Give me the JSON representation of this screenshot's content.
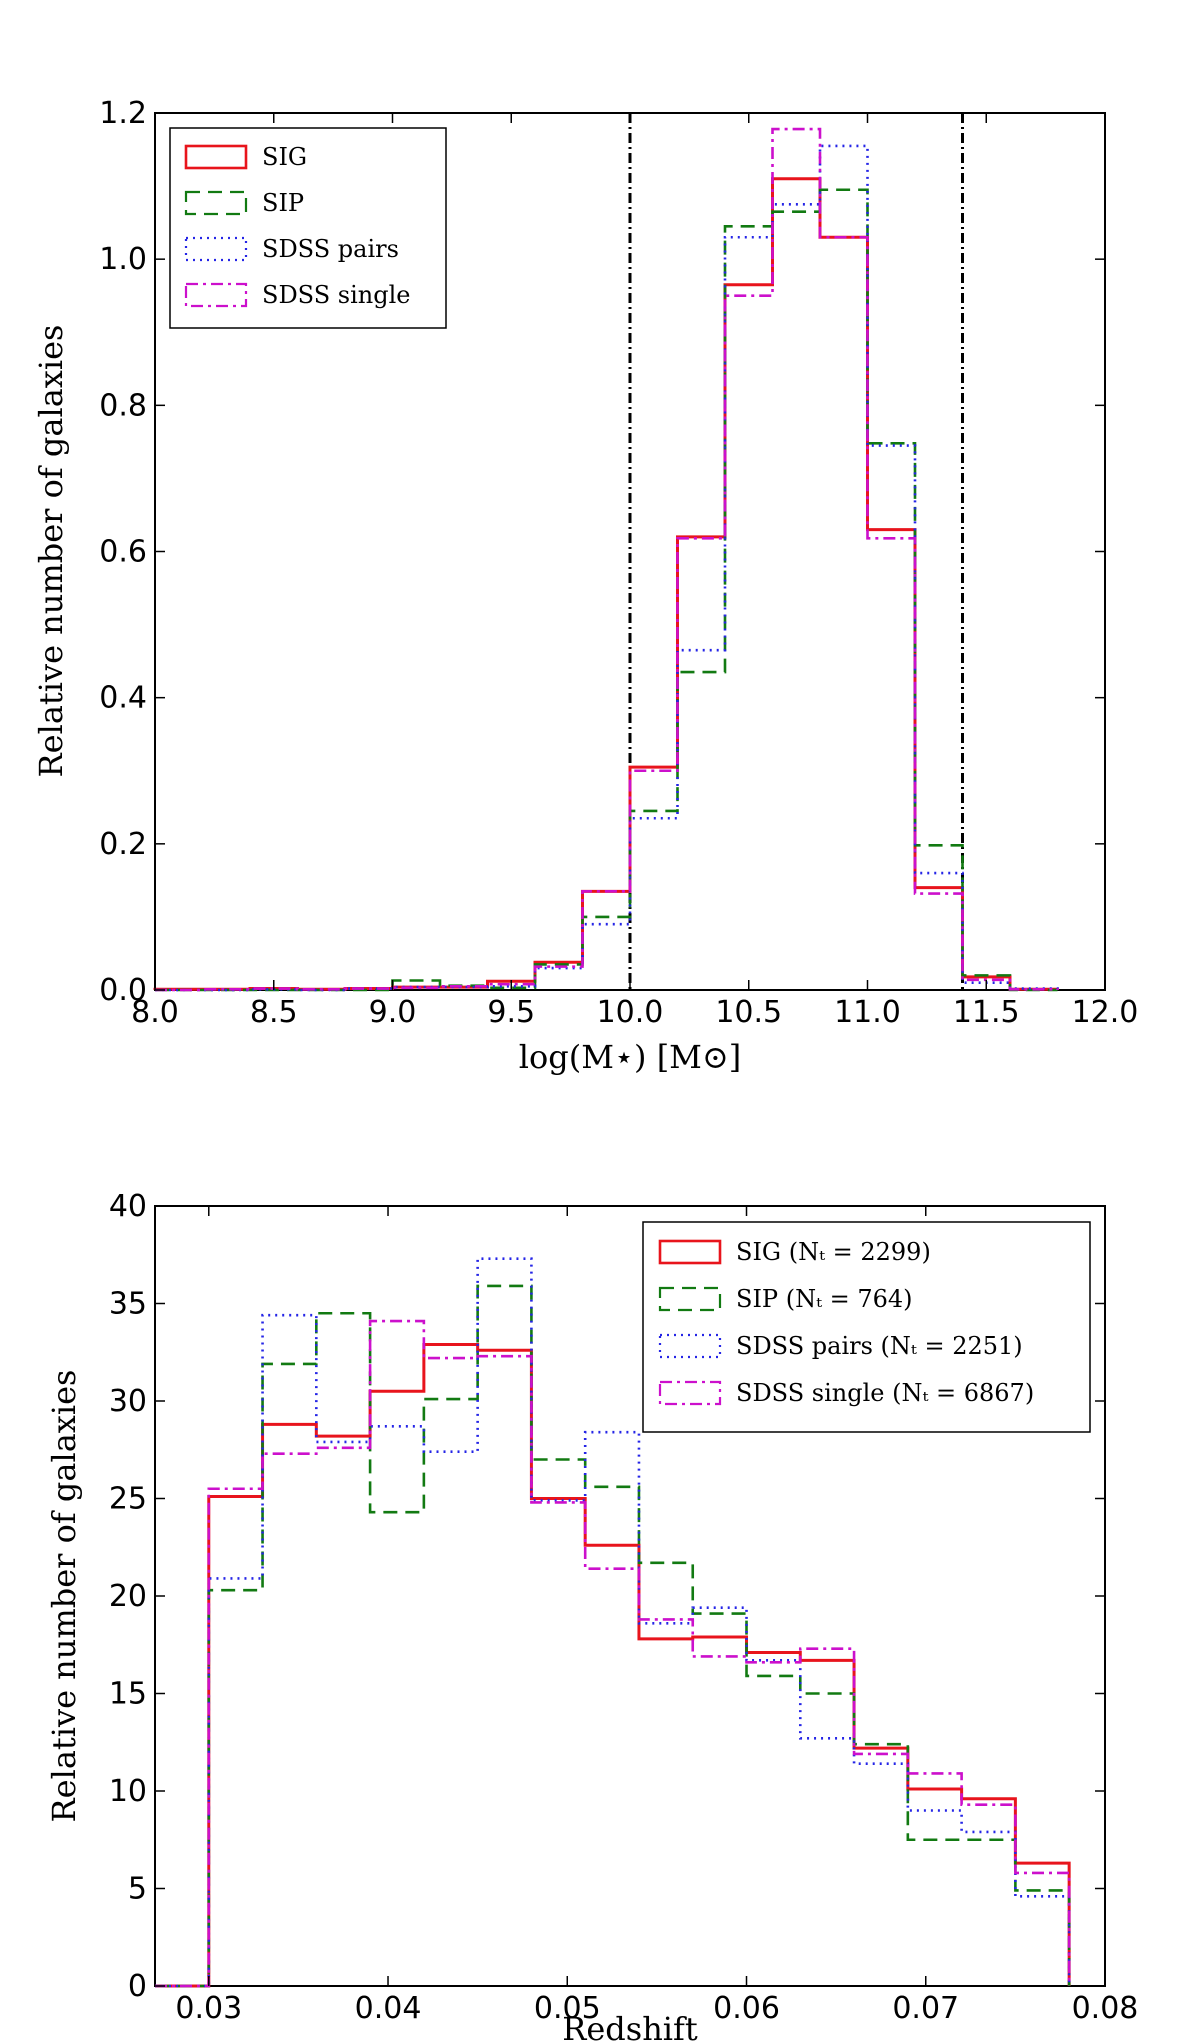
{
  "chart_data": [
    {
      "type": "histogram",
      "xlabel": "log(M⋆) [M⊙]",
      "ylabel": "Relative number of galaxies",
      "xlim": [
        8.0,
        12.0
      ],
      "ylim": [
        0.0,
        1.2
      ],
      "xticks": [
        "8.0",
        "8.5",
        "9.0",
        "9.5",
        "10.0",
        "10.5",
        "11.0",
        "11.5",
        "12.0"
      ],
      "yticks": [
        "0.0",
        "0.2",
        "0.4",
        "0.6",
        "0.8",
        "1.0",
        "1.2"
      ],
      "legend_position": "top-left",
      "vlines": [
        10.0,
        11.4
      ],
      "bin_edges": [
        8.0,
        8.2,
        8.4,
        8.6,
        8.8,
        9.0,
        9.2,
        9.4,
        9.6,
        9.8,
        10.0,
        10.2,
        10.4,
        10.6,
        10.8,
        11.0,
        11.2,
        11.4,
        11.6,
        11.8
      ],
      "series": [
        {
          "name": "SIG",
          "color": "#e8141c",
          "style": "solid",
          "values": [
            0.001,
            0.001,
            0.002,
            0.001,
            0.002,
            0.004,
            0.004,
            0.012,
            0.038,
            0.135,
            0.305,
            0.62,
            0.965,
            1.11,
            1.03,
            0.63,
            0.14,
            0.018,
            0.001
          ]
        },
        {
          "name": "SIP",
          "color": "#127a12",
          "style": "dashed",
          "values": [
            0.0,
            0.0,
            0.0,
            0.0,
            0.0,
            0.013,
            0.006,
            0.003,
            0.035,
            0.1,
            0.245,
            0.435,
            1.045,
            1.065,
            1.095,
            0.748,
            0.198,
            0.02,
            0.0
          ]
        },
        {
          "name": "SDSS pairs",
          "color": "#2525e6",
          "style": "dotted",
          "values": [
            0.0,
            0.0,
            0.001,
            0.0,
            0.002,
            0.004,
            0.004,
            0.005,
            0.03,
            0.09,
            0.235,
            0.465,
            1.03,
            1.075,
            1.155,
            0.745,
            0.16,
            0.01,
            0.002
          ]
        },
        {
          "name": "SDSS single",
          "color": "#cc10cc",
          "style": "dashdot",
          "values": [
            0.0,
            0.001,
            0.002,
            0.001,
            0.002,
            0.003,
            0.005,
            0.008,
            0.032,
            0.135,
            0.3,
            0.618,
            0.95,
            1.178,
            1.03,
            0.618,
            0.132,
            0.014,
            0.001
          ]
        }
      ]
    },
    {
      "type": "histogram",
      "xlabel": "Redshift",
      "ylabel": "Relative number of galaxies",
      "xlim": [
        0.027,
        0.08
      ],
      "ylim": [
        0,
        40
      ],
      "xticks": [
        "0.03",
        "0.04",
        "0.05",
        "0.06",
        "0.07",
        "0.08"
      ],
      "yticks": [
        "0",
        "5",
        "10",
        "15",
        "20",
        "25",
        "30",
        "35",
        "40"
      ],
      "legend_position": "top-right",
      "bin_edges": [
        0.027,
        0.03,
        0.033,
        0.036,
        0.039,
        0.042,
        0.045,
        0.048,
        0.051,
        0.054,
        0.057,
        0.06,
        0.063,
        0.066,
        0.069,
        0.072,
        0.075,
        0.078
      ],
      "series": [
        {
          "name": "SIG (Nₜ = 2299)",
          "color": "#e8141c",
          "style": "solid",
          "values": [
            0,
            25.1,
            28.8,
            28.2,
            30.5,
            32.9,
            32.6,
            25.0,
            22.6,
            17.8,
            17.9,
            17.1,
            16.7,
            12.2,
            10.1,
            9.6,
            6.3
          ]
        },
        {
          "name": "SIP (Nₜ = 764)",
          "color": "#127a12",
          "style": "dashed",
          "values": [
            0,
            20.3,
            31.9,
            34.5,
            24.3,
            30.1,
            35.9,
            27.0,
            25.6,
            21.7,
            19.1,
            15.9,
            15.0,
            12.4,
            7.5,
            7.5,
            4.9
          ]
        },
        {
          "name": "SDSS pairs (Nₜ = 2251)",
          "color": "#2525e6",
          "style": "dotted",
          "values": [
            0,
            20.9,
            34.4,
            27.9,
            28.7,
            27.4,
            37.3,
            24.9,
            28.4,
            18.6,
            19.4,
            16.7,
            12.7,
            11.4,
            9.0,
            7.9,
            4.6
          ]
        },
        {
          "name": "SDSS single (Nₜ = 6867)",
          "color": "#cc10cc",
          "style": "dashdot",
          "values": [
            0,
            25.5,
            27.3,
            27.6,
            34.1,
            32.2,
            32.3,
            24.8,
            21.4,
            18.8,
            16.9,
            16.6,
            17.3,
            11.9,
            10.9,
            9.3,
            5.8
          ]
        }
      ]
    }
  ]
}
